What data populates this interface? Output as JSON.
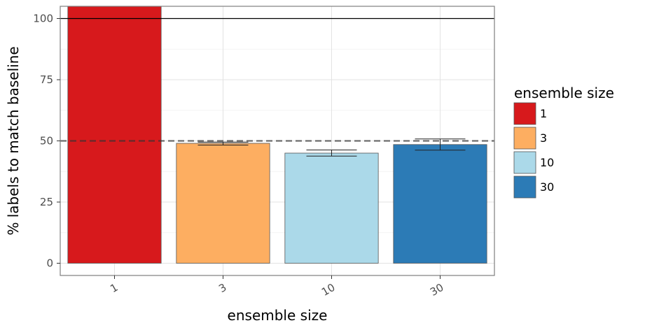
{
  "chart_data": {
    "type": "bar",
    "xlabel": "ensemble size",
    "ylabel": "% labels to match baseline",
    "categories": [
      "1",
      "3",
      "10",
      "30"
    ],
    "values": [
      105,
      49,
      45,
      48.5
    ],
    "error_bars": [
      null,
      [
        48.3,
        49.5
      ],
      [
        43.8,
        46.3
      ],
      [
        46.2,
        50.8
      ]
    ],
    "colors": [
      "#d7191c",
      "#fdae61",
      "#abd9e9",
      "#2c7bb6"
    ],
    "ylim": [
      -5,
      105
    ],
    "yticks": [
      0,
      25,
      50,
      75,
      100
    ],
    "ytick_labels": [
      "0",
      "25",
      "50",
      "75",
      "100"
    ],
    "reference_lines": [
      {
        "value": 100,
        "style": "solid",
        "color": "#000000"
      },
      {
        "value": 50,
        "style": "dashed",
        "color": "#333333"
      }
    ],
    "grid": true,
    "legend": {
      "title": "ensemble size",
      "position": "right",
      "entries": [
        "1",
        "3",
        "10",
        "30"
      ]
    }
  }
}
